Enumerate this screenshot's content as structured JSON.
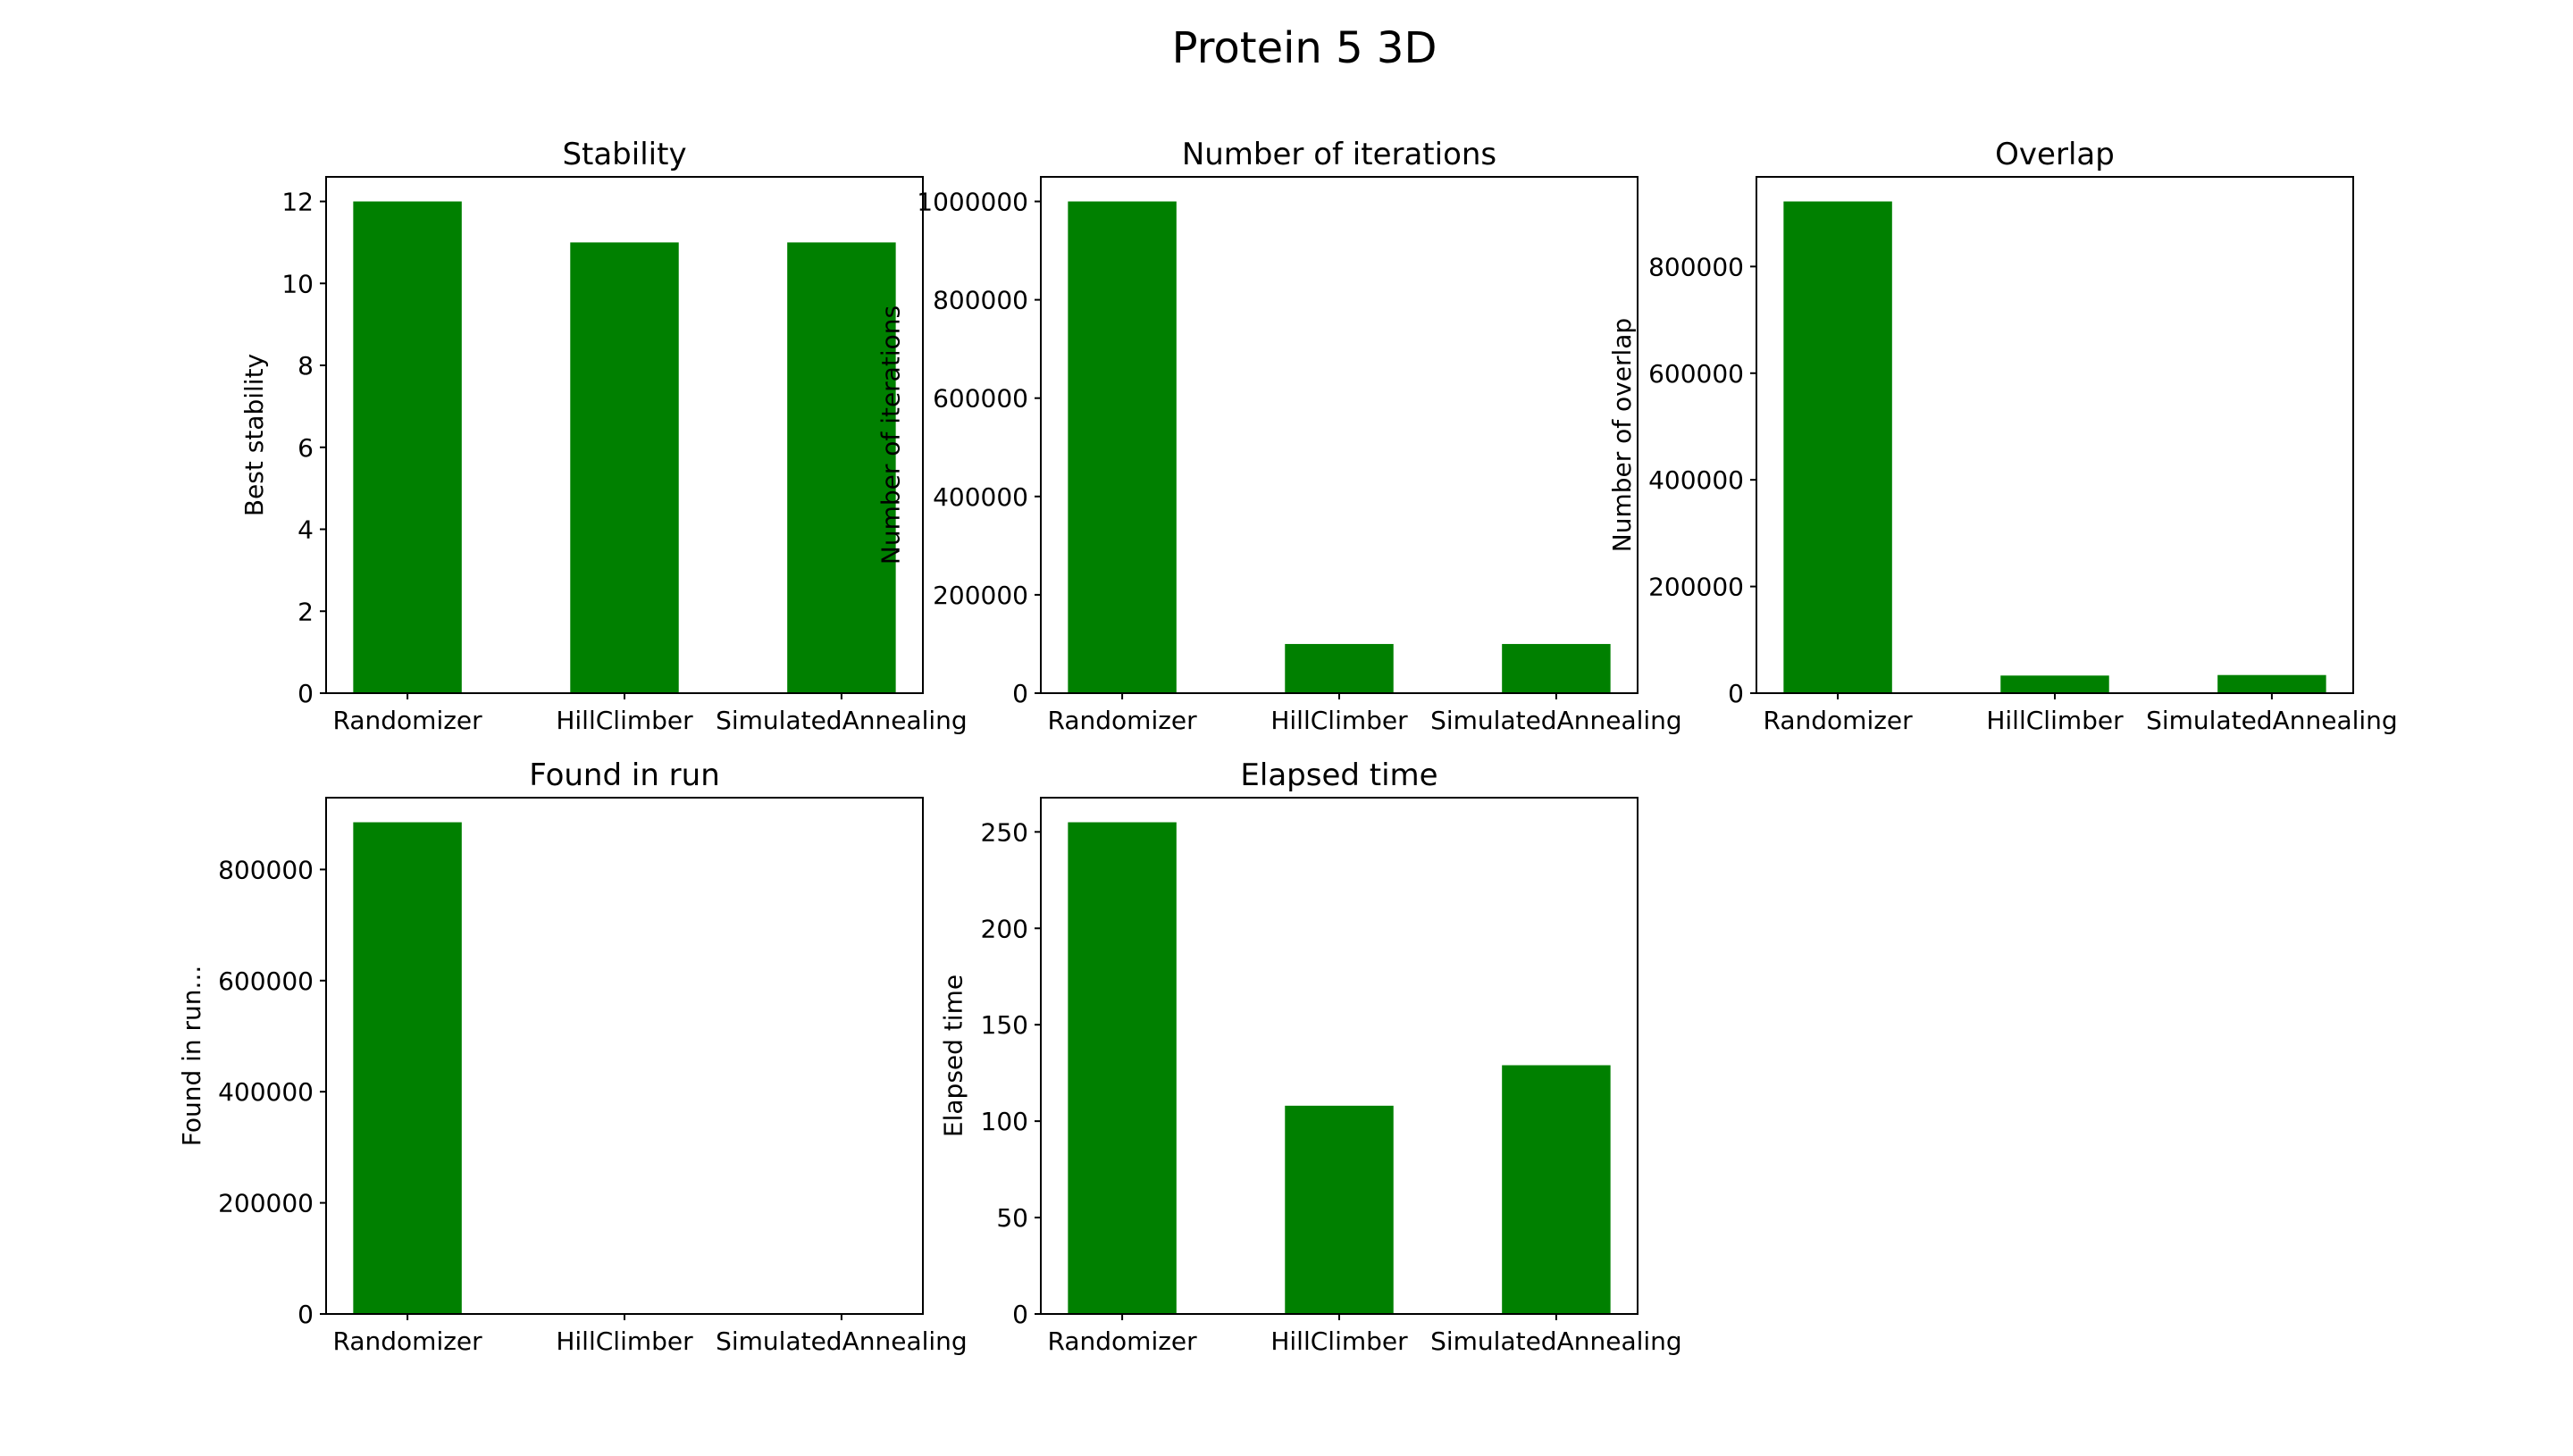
{
  "figure": {
    "title": "Protein 5 3D"
  },
  "chart_data": [
    {
      "type": "bar",
      "title": "Stability",
      "xlabel": "",
      "ylabel": "Best stability",
      "categories": [
        "Randomizer",
        "HillClimber",
        "SimulatedAnnealing"
      ],
      "values": [
        12,
        11,
        11
      ],
      "ylim": [
        0,
        12.6
      ],
      "yticks": [
        0,
        2,
        4,
        6,
        8,
        10,
        12
      ],
      "color": "#008000",
      "grid": false
    },
    {
      "type": "bar",
      "title": "Number of iterations",
      "xlabel": "",
      "ylabel": "Number of iterations",
      "categories": [
        "Randomizer",
        "HillClimber",
        "SimulatedAnnealing"
      ],
      "values": [
        1000000,
        100000,
        100000
      ],
      "ylim": [
        0,
        1050000
      ],
      "yticks": [
        0,
        200000,
        400000,
        600000,
        800000,
        1000000
      ],
      "color": "#008000",
      "grid": false
    },
    {
      "type": "bar",
      "title": "Overlap",
      "xlabel": "",
      "ylabel": "Number  of overlap",
      "categories": [
        "Randomizer",
        "HillClimber",
        "SimulatedAnnealing"
      ],
      "values": [
        922000,
        33000,
        34000
      ],
      "ylim": [
        0,
        968100
      ],
      "yticks": [
        0,
        200000,
        400000,
        600000,
        800000
      ],
      "color": "#008000",
      "grid": false
    },
    {
      "type": "bar",
      "title": "Found in run",
      "xlabel": "",
      "ylabel": "Found in run...",
      "categories": [
        "Randomizer",
        "HillClimber",
        "SimulatedAnnealing"
      ],
      "values": [
        885000,
        0,
        0
      ],
      "ylim": [
        0,
        929250
      ],
      "yticks": [
        0,
        200000,
        400000,
        600000,
        800000
      ],
      "color": "#008000",
      "grid": false
    },
    {
      "type": "bar",
      "title": "Elapsed time",
      "xlabel": "",
      "ylabel": "Elapsed time",
      "categories": [
        "Randomizer",
        "HillClimber",
        "SimulatedAnnealing"
      ],
      "values": [
        255,
        108,
        129
      ],
      "ylim": [
        0,
        267.75
      ],
      "yticks": [
        0,
        50,
        100,
        150,
        200,
        250
      ],
      "color": "#008000",
      "grid": false
    }
  ]
}
